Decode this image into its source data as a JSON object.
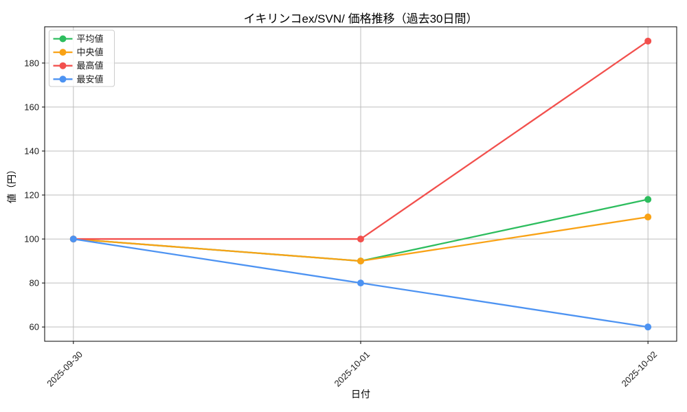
{
  "chart_data": {
    "type": "line",
    "title": "イキリンコex/SVN/ 価格推移（過去30日間）",
    "xlabel": "日付",
    "ylabel": "値（円）",
    "x": [
      "2025-09-30",
      "2025-10-01",
      "2025-10-02"
    ],
    "series": [
      {
        "name": "平均値",
        "color": "#2dbd5e",
        "values": [
          100,
          90,
          118
        ]
      },
      {
        "name": "中央値",
        "color": "#f9a215",
        "values": [
          100,
          90,
          110
        ]
      },
      {
        "name": "最高値",
        "color": "#f2504d",
        "values": [
          100,
          100,
          190
        ]
      },
      {
        "name": "最安値",
        "color": "#4d93f2",
        "values": [
          100,
          80,
          60
        ]
      }
    ],
    "yticks": [
      60,
      80,
      100,
      120,
      140,
      160,
      180
    ],
    "ylim": [
      53.5,
      196.5
    ],
    "grid": true,
    "grid_color": "#bdbdbd",
    "spine_color": "#000000",
    "legend_position": "upper-left",
    "marker": "circle",
    "background": "#ffffff"
  }
}
